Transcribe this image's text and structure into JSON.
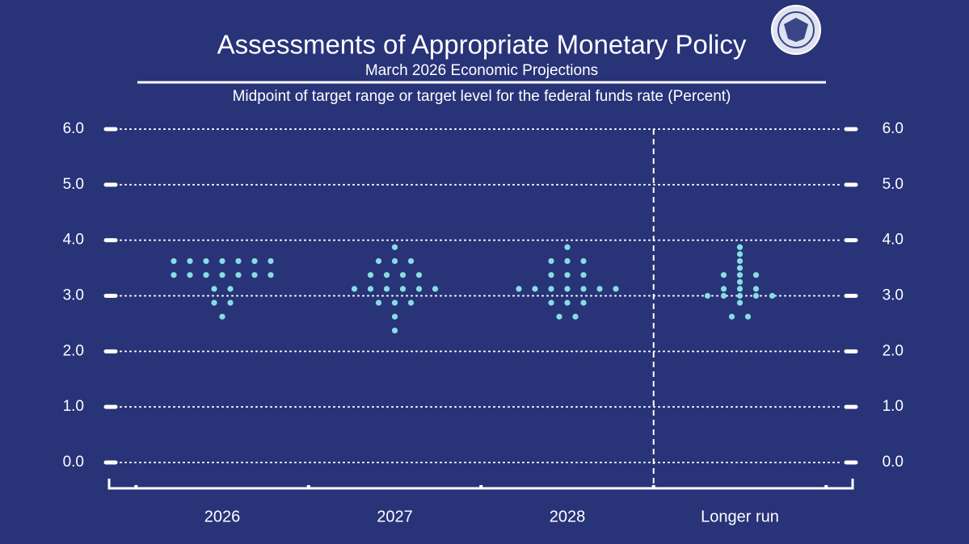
{
  "chart_data": {
    "type": "dot",
    "title": "Assessments of Appropriate Monetary Policy",
    "subtitle": "March 2026 Economic Projections",
    "ylabel": "Midpoint of target range or target level for the federal funds rate (Percent)",
    "categories": [
      "2026",
      "2027",
      "2028",
      "Longer run"
    ],
    "color": "#86dde3",
    "values": [
      [
        {
          "rate": 3.625,
          "count": 7
        },
        {
          "rate": 3.375,
          "count": 7
        },
        {
          "rate": 3.125,
          "count": 2
        },
        {
          "rate": 2.875,
          "count": 2
        },
        {
          "rate": 2.625,
          "count": 1
        }
      ],
      [
        {
          "rate": 3.875,
          "count": 1
        },
        {
          "rate": 3.625,
          "count": 3
        },
        {
          "rate": 3.375,
          "count": 4
        },
        {
          "rate": 3.125,
          "count": 6
        },
        {
          "rate": 2.875,
          "count": 3
        },
        {
          "rate": 2.625,
          "count": 1
        },
        {
          "rate": 2.375,
          "count": 1
        }
      ],
      [
        {
          "rate": 3.875,
          "count": 1
        },
        {
          "rate": 3.625,
          "count": 3
        },
        {
          "rate": 3.375,
          "count": 3
        },
        {
          "rate": 3.125,
          "count": 7
        },
        {
          "rate": 2.875,
          "count": 3
        },
        {
          "rate": 2.625,
          "count": 2
        }
      ],
      [
        {
          "rate": 3.875,
          "count": 1
        },
        {
          "rate": 3.75,
          "count": 1
        },
        {
          "rate": 3.625,
          "count": 1
        },
        {
          "rate": 3.5,
          "count": 1
        },
        {
          "rate": 3.375,
          "count": 3
        },
        {
          "rate": 3.25,
          "count": 1
        },
        {
          "rate": 3.125,
          "count": 3
        },
        {
          "rate": 3.0,
          "count": 5
        },
        {
          "rate": 2.875,
          "count": 1
        },
        {
          "rate": 2.625,
          "count": 2
        }
      ]
    ],
    "ylim": [
      0,
      6
    ],
    "yticks": [
      {
        "value": 0,
        "label": "0.0"
      },
      {
        "value": 1,
        "label": "1.0"
      },
      {
        "value": 2,
        "label": "2.0"
      },
      {
        "value": 3,
        "label": "3.0"
      },
      {
        "value": 4,
        "label": "4.0"
      },
      {
        "value": 5,
        "label": "5.0"
      },
      {
        "value": 6,
        "label": "6.0"
      }
    ],
    "y2lim": [
      0,
      6
    ],
    "y2ticks": [
      {
        "value": 0,
        "label": "0.0"
      },
      {
        "value": 1,
        "label": "1.0"
      },
      {
        "value": 2,
        "label": "2.0"
      },
      {
        "value": 3,
        "label": "3.0"
      },
      {
        "value": 4,
        "label": "4.0"
      },
      {
        "value": 5,
        "label": "5.0"
      },
      {
        "value": 6,
        "label": "6.0"
      }
    ],
    "grid": true
  }
}
